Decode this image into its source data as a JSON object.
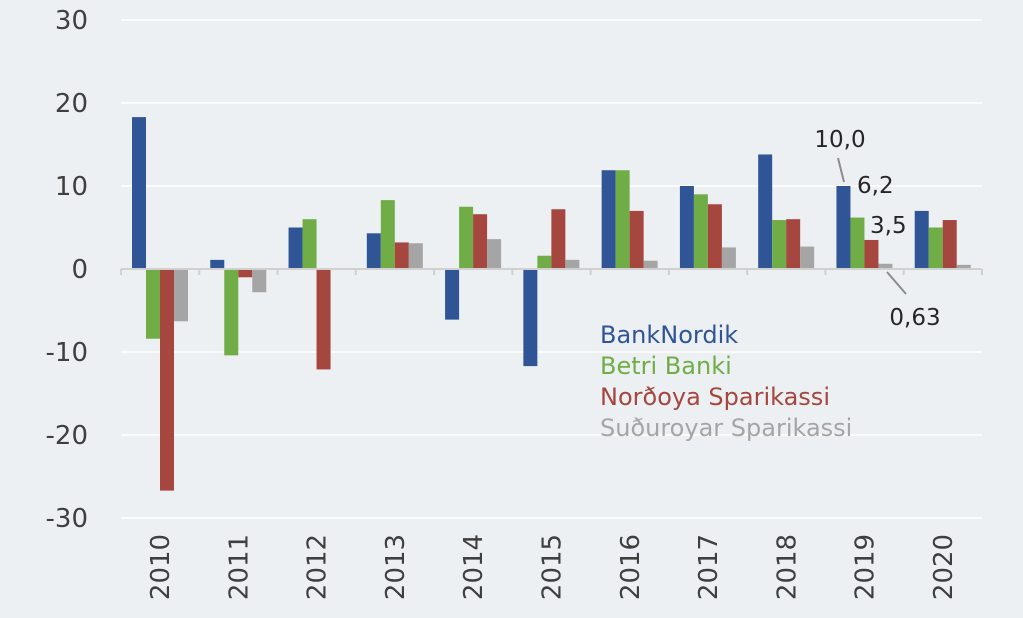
{
  "chart_data": {
    "type": "bar",
    "categories": [
      "2010",
      "2011",
      "2012",
      "2013",
      "2014",
      "2015",
      "2016",
      "2017",
      "2018",
      "2019",
      "2020"
    ],
    "series": [
      {
        "name": "BankNordik",
        "color": "#2f5597",
        "values": [
          18.3,
          1.1,
          5.0,
          4.3,
          -6.1,
          -11.7,
          11.9,
          10.0,
          13.8,
          10.0,
          7.0
        ]
      },
      {
        "name": "Betri Banki",
        "color": "#70ad47",
        "values": [
          -8.4,
          -10.4,
          6.0,
          8.3,
          7.5,
          1.6,
          11.9,
          9.0,
          5.9,
          6.2,
          5.0
        ]
      },
      {
        "name": "Norðoya Sparikassi",
        "color": "#a5463f",
        "values": [
          -26.7,
          -1.0,
          -12.1,
          3.2,
          6.6,
          7.2,
          7.0,
          7.8,
          6.0,
          3.5,
          5.9
        ]
      },
      {
        "name": "Suðuroyar Sparikassi",
        "color": "#a5a5a5",
        "values": [
          -6.3,
          -2.8,
          0.0,
          3.1,
          3.6,
          1.1,
          1.0,
          2.6,
          2.7,
          0.63,
          0.5
        ]
      }
    ],
    "ylim": [
      -30,
      30
    ],
    "yticks": [
      -30,
      -20,
      -10,
      0,
      10,
      20,
      30
    ],
    "grid": true,
    "legend": "center-right",
    "annotations": [
      {
        "category": "2019",
        "series": 0,
        "text": "10,0"
      },
      {
        "category": "2019",
        "series": 1,
        "text": "6,2"
      },
      {
        "category": "2019",
        "series": 2,
        "text": "3,5"
      },
      {
        "category": "2019",
        "series": 3,
        "text": "0,63"
      }
    ]
  }
}
